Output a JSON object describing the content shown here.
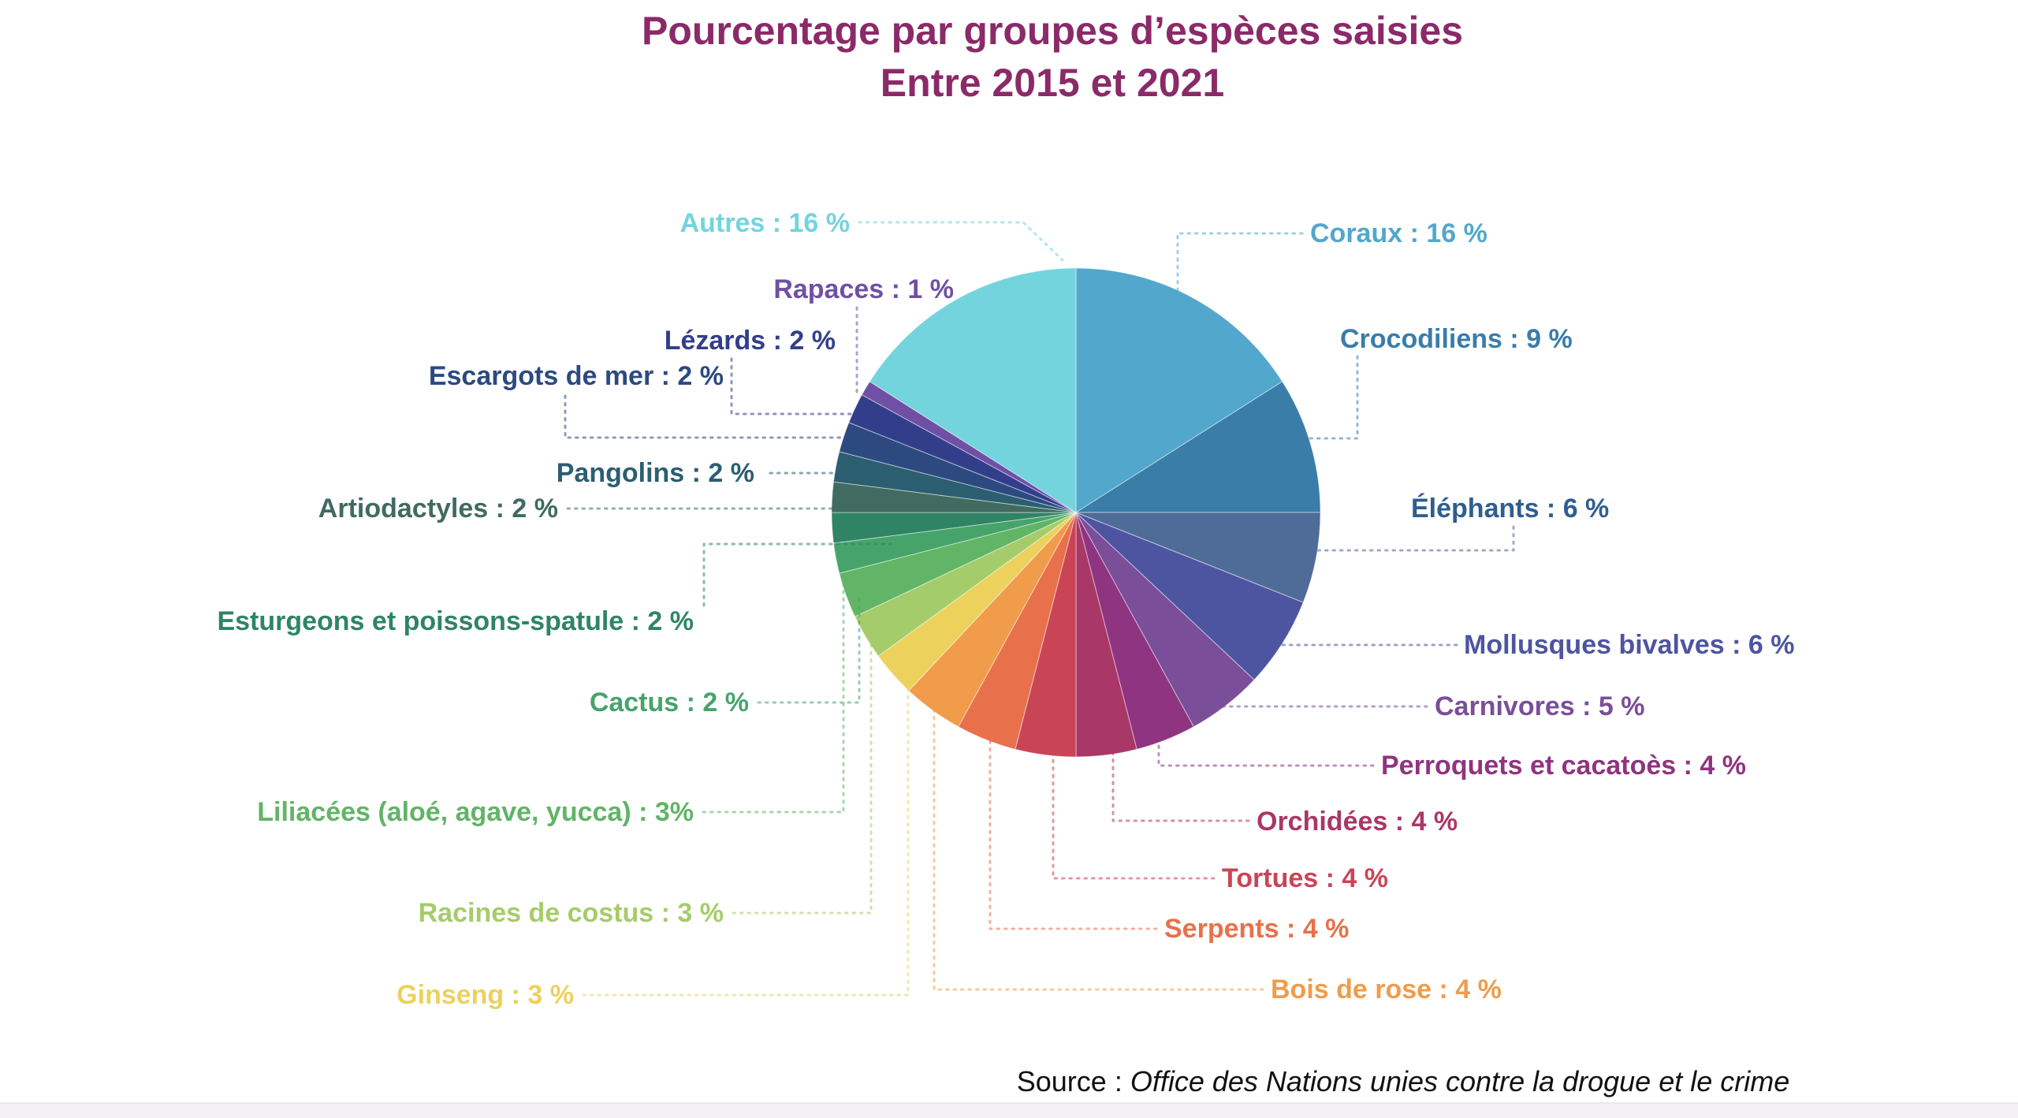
{
  "title": {
    "line1": "Pourcentage par groupes d’espèces saisies",
    "line2": "Entre 2015 et 2021",
    "color": "#8B2A68"
  },
  "source": {
    "prefix": "Source : ",
    "text": "Office des Nations unies contre la drogue et le crime"
  },
  "background_color": "#FFFFFF",
  "bottom_strip_color": "#F3F1F4",
  "chart_data": {
    "type": "pie",
    "title": "Pourcentage par groupes d’espèces saisies Entre 2015 et 2021",
    "unit": "%",
    "legend_position": "labels-around-pie",
    "start_angle_deg": 0,
    "direction": "clockwise",
    "slices": [
      {
        "name": "Coraux",
        "value": 16,
        "label": "Coraux : 16 %",
        "color": "#52A7CC"
      },
      {
        "name": "Crocodiliens",
        "value": 9,
        "label": "Crocodiliens : 9 %",
        "color": "#3A7DA9"
      },
      {
        "name": "Éléphants",
        "value": 6,
        "label": "Éléphants : 6 %",
        "color": "#4F6B97",
        "label_color": "#2F5E8F"
      },
      {
        "name": "Mollusques bivalves",
        "value": 6,
        "label": "Mollusques bivalves : 6 %",
        "color": "#4D55A1"
      },
      {
        "name": "Carnivores",
        "value": 5,
        "label": "Carnivores : 5 %",
        "color": "#7A4E99"
      },
      {
        "name": "Perroquets et cacatoès",
        "value": 4,
        "label": "Perroquets et cacatoès : 4 %",
        "color": "#8F3480"
      },
      {
        "name": "Orchidées",
        "value": 4,
        "label": "Orchidées : 4 %",
        "color": "#A93767"
      },
      {
        "name": "Tortues",
        "value": 4,
        "label": "Tortues : 4 %",
        "color": "#C94556"
      },
      {
        "name": "Serpents",
        "value": 4,
        "label": "Serpents : 4 %",
        "color": "#E8714B"
      },
      {
        "name": "Bois de rose",
        "value": 4,
        "label": "Bois de rose : 4 %",
        "color": "#F09C4B"
      },
      {
        "name": "Ginseng",
        "value": 3,
        "label": "Ginseng : 3 %",
        "color": "#ECD15D"
      },
      {
        "name": "Racines de costus",
        "value": 3,
        "label": "Racines de costus : 3 %",
        "color": "#A5CC6A"
      },
      {
        "name": "Liliacées (aloé, agave, yucca)",
        "value": 3,
        "label": "Liliacées (aloé, agave, yucca) : 3%",
        "color": "#62B467"
      },
      {
        "name": "Cactus",
        "value": 2,
        "label": "Cactus : 2 %",
        "color": "#46A46B"
      },
      {
        "name": "Esturgeons et poissons-spatule",
        "value": 2,
        "label": "Esturgeons et poissons-spatule : 2 %",
        "color": "#2F8465"
      },
      {
        "name": "Artiodactyles",
        "value": 2,
        "label": "Artiodactyles : 2 %",
        "color": "#416B60"
      },
      {
        "name": "Pangolins",
        "value": 2,
        "label": "Pangolins : 2 %",
        "color": "#2B5E71"
      },
      {
        "name": "Escargots de mer",
        "value": 2,
        "label": "Escargots de mer : 2 %",
        "color": "#2C4A80"
      },
      {
        "name": "Lézards",
        "value": 2,
        "label": "Lézards : 2 %",
        "color": "#333E8B"
      },
      {
        "name": "Rapaces",
        "value": 1,
        "label": "Rapaces : 1 %",
        "color": "#6F50A5"
      },
      {
        "name": "Autres",
        "value": 16,
        "label": "Autres : 16 %",
        "color": "#73D4DE"
      }
    ]
  }
}
